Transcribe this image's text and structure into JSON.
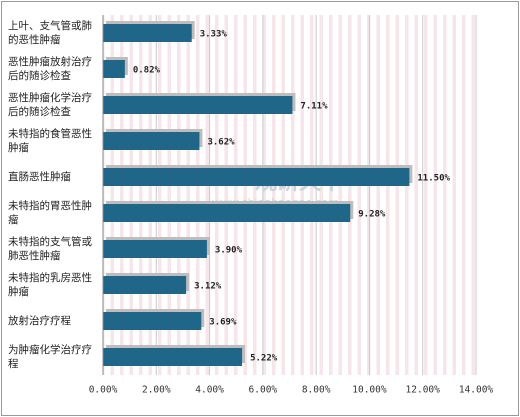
{
  "chart_data": {
    "type": "bar",
    "orientation": "horizontal",
    "categories": [
      "上叶、支气管或肺的恶性肿瘤",
      "恶性肿瘤放射治疗后的随诊检查",
      "恶性肿瘤化学治疗后的随诊检查",
      "未特指的食管恶性肿瘤",
      "直肠恶性肿瘤",
      "未特指的胃恶性肿瘤",
      "未特指的支气管或肺恶性肿瘤",
      "未特指的乳房恶性肿瘤",
      "放射治疗疗程",
      "为肿瘤化学治疗疗程"
    ],
    "values": [
      3.33,
      0.82,
      7.11,
      3.62,
      11.5,
      9.28,
      3.9,
      3.12,
      3.69,
      5.22
    ],
    "value_labels": [
      "3.33%",
      "0.82%",
      "7.11%",
      "3.62%",
      "11.50%",
      "9.28%",
      "3.90%",
      "3.12%",
      "3.69%",
      "5.22%"
    ],
    "color": "#1f6689",
    "xlim": [
      0,
      14
    ],
    "xticks": [
      {
        "value": 0,
        "label": "0.00%"
      },
      {
        "value": 2,
        "label": "2.00%"
      },
      {
        "value": 4,
        "label": "4.00%"
      },
      {
        "value": 6,
        "label": "6.00%"
      },
      {
        "value": 8,
        "label": "8.00%"
      },
      {
        "value": 10,
        "label": "10.00%"
      },
      {
        "value": 12,
        "label": "12.00%"
      },
      {
        "value": 14,
        "label": "14.00%"
      }
    ],
    "grid": true
  },
  "watermark": {
    "brand": "观研天下",
    "url": "www.chinabaogao.com"
  }
}
